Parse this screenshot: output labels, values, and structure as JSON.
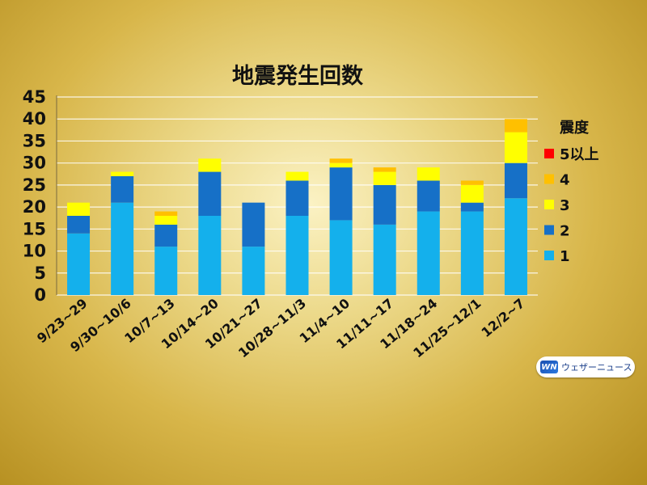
{
  "chart_data": {
    "type": "bar",
    "stacked": true,
    "title": "地震発生回数",
    "categories": [
      "9/23~29",
      "9/30~10/6",
      "10/7~13",
      "10/14~20",
      "10/21~27",
      "10/28~11/3",
      "11/4~10",
      "11/11~17",
      "11/18~24",
      "11/25~12/1",
      "12/2~7"
    ],
    "series": [
      {
        "name": "1",
        "color": "#14b0ec",
        "values": [
          14,
          21,
          11,
          18,
          11,
          18,
          17,
          16,
          19,
          19,
          22
        ]
      },
      {
        "name": "2",
        "color": "#1670c7",
        "values": [
          4,
          6,
          5,
          10,
          10,
          8,
          12,
          9,
          7,
          2,
          8
        ]
      },
      {
        "name": "3",
        "color": "#ffff00",
        "values": [
          3,
          1,
          2,
          3,
          0,
          2,
          1,
          3,
          3,
          4,
          7
        ]
      },
      {
        "name": "4",
        "color": "#ffc000",
        "values": [
          0,
          0,
          1,
          0,
          0,
          0,
          1,
          1,
          0,
          1,
          3
        ]
      },
      {
        "name": "5以上",
        "color": "#ff0000",
        "values": [
          0,
          0,
          0,
          0,
          0,
          0,
          0,
          0,
          0,
          0,
          0
        ]
      }
    ],
    "ylim": [
      0,
      45
    ],
    "yticks": [
      0,
      5,
      10,
      15,
      20,
      25,
      30,
      35,
      40,
      45
    ],
    "grid": true,
    "legend": {
      "title": "震度",
      "placement": "right"
    }
  },
  "logo": {
    "mark": "WN",
    "text": "ウェザーニュース"
  }
}
